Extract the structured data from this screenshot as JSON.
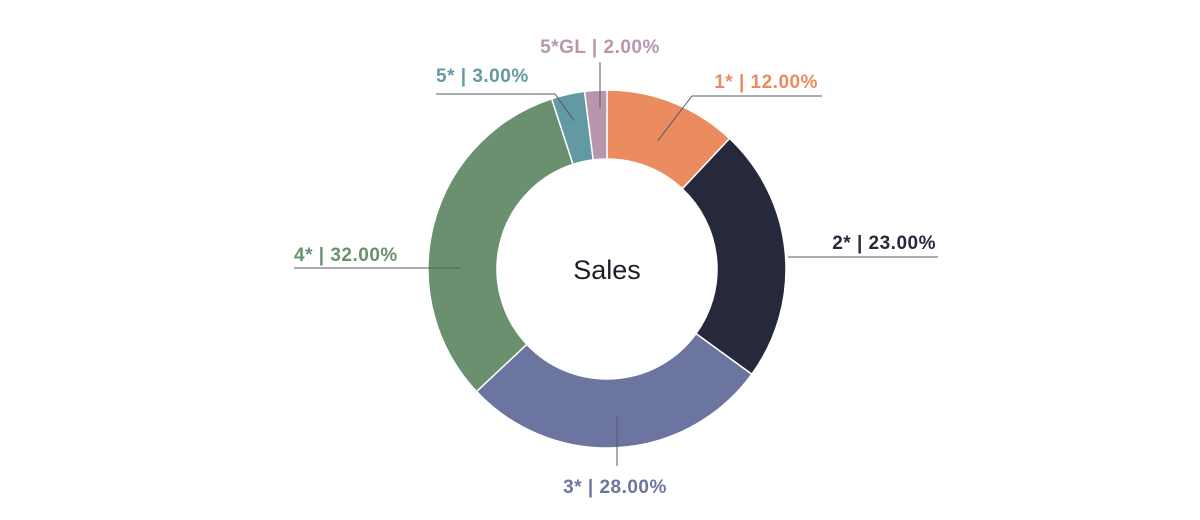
{
  "chart_data": {
    "type": "pie",
    "variant": "donut",
    "center_label": "Sales",
    "title": "",
    "slices": [
      {
        "category": "1*",
        "value": 12.0,
        "label": "1* | 12.00%",
        "color": "#EA8C5F"
      },
      {
        "category": "2*",
        "value": 23.0,
        "label": "2* | 23.00%",
        "color": "#26293B"
      },
      {
        "category": "3*",
        "value": 28.0,
        "label": "3* | 28.00%",
        "color": "#6B759F"
      },
      {
        "category": "4*",
        "value": 32.0,
        "label": "4* | 32.00%",
        "color": "#6A9070"
      },
      {
        "category": "5*",
        "value": 3.0,
        "label": "5* | 3.00%",
        "color": "#6399A2"
      },
      {
        "category": "5*GL",
        "value": 2.0,
        "label": "5*GL | 2.00%",
        "color": "#B896AE"
      }
    ],
    "start_angle": "12 o'clock",
    "direction": "clockwise",
    "legend": "none",
    "labels": "outside with leader lines"
  }
}
